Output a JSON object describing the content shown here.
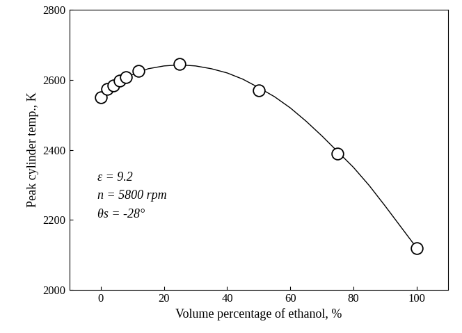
{
  "chart_data": {
    "type": "scatter",
    "x_label": "Volume percentage of ethanol, %",
    "y_label": "Peak cylinder temp., K",
    "annotations": [
      "ε = 9.2",
      "n = 5800 rpm",
      "θs = -28°"
    ],
    "series": [
      {
        "type": "scatter",
        "color": "#000000",
        "marker": "o",
        "x": [
          0,
          2,
          4,
          6,
          8,
          12,
          25,
          50,
          75,
          100
        ],
        "values": [
          2550,
          2575,
          2585,
          2598,
          2608,
          2625,
          2645,
          2570,
          2390,
          2118
        ]
      },
      {
        "type": "line",
        "color": "#000000",
        "line_style": "solid",
        "x": [
          0,
          5,
          10,
          15,
          20,
          25,
          30,
          35,
          40,
          45,
          50,
          55,
          60,
          65,
          70,
          75,
          80,
          85,
          90,
          95,
          100
        ],
        "values": [
          2555,
          2590,
          2615,
          2632,
          2640,
          2643,
          2640,
          2632,
          2620,
          2602,
          2578,
          2552,
          2520,
          2482,
          2440,
          2395,
          2350,
          2298,
          2240,
          2180,
          2120
        ]
      }
    ],
    "xlim": [
      -10,
      110
    ],
    "xticks": [
      0,
      20,
      40,
      60,
      80,
      100
    ],
    "ylim": [
      2000,
      2800
    ],
    "yticks": [
      2000,
      2200,
      2400,
      2600,
      2800
    ],
    "grid": false
  }
}
